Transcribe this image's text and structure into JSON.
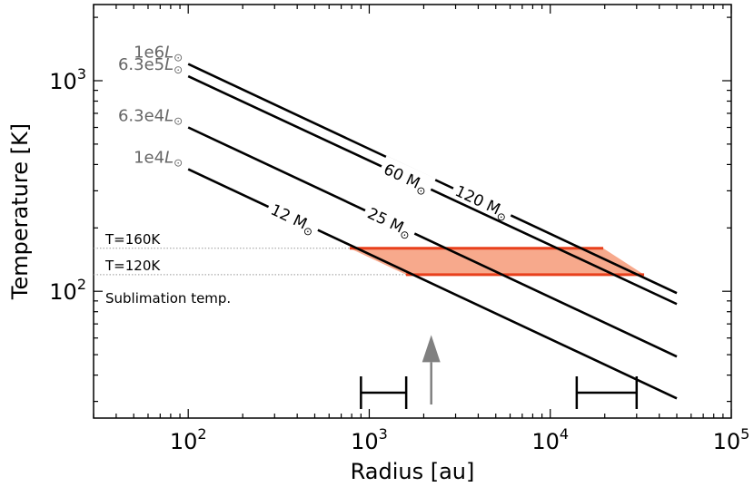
{
  "chart_data": {
    "type": "line",
    "xlabel": "Radius [au]",
    "ylabel": "Temperature [K]",
    "xscale": "log",
    "yscale": "log",
    "xlim": [
      30,
      100000
    ],
    "ylim": [
      25,
      2300
    ],
    "grid": false,
    "x_ticks": [
      {
        "value": 100,
        "base": "10",
        "exp": "2"
      },
      {
        "value": 1000,
        "base": "10",
        "exp": "3"
      },
      {
        "value": 10000,
        "base": "10",
        "exp": "4"
      },
      {
        "value": 100000,
        "base": "10",
        "exp": "5"
      }
    ],
    "y_ticks": [
      {
        "value": 100,
        "base": "10",
        "exp": "2"
      },
      {
        "value": 1000,
        "base": "10",
        "exp": "3"
      }
    ],
    "series": [
      {
        "x": [
          100,
          50000
        ],
        "y": [
          1200,
          98
        ],
        "luminosity": "1e6",
        "mass_label": "120 M",
        "mass_at": 4200
      },
      {
        "x": [
          100,
          50000
        ],
        "y": [
          1050,
          87
        ],
        "luminosity": "6.3e5",
        "mass_label": "60 M",
        "mass_at": 1600
      },
      {
        "x": [
          100,
          50000
        ],
        "y": [
          600,
          49
        ],
        "luminosity": "6.3e4",
        "mass_label": "25 M",
        "mass_at": 1300
      },
      {
        "x": [
          100,
          50000
        ],
        "y": [
          380,
          31
        ],
        "luminosity": "1e4",
        "mass_label": "12 M",
        "mass_at": 380
      }
    ],
    "lsun_symbol": "L",
    "msun_symbol": "⊙",
    "sublimation": {
      "label": "Sublimation temp.",
      "upper": {
        "temp": 160,
        "label": "T=160K"
      },
      "lower": {
        "temp": 120,
        "label": "T=120K"
      },
      "band_x_min": 780,
      "band_x_max": 33000,
      "line_color": "#e8401c",
      "fill_color": "#f7a98c"
    },
    "error_bars": [
      {
        "x_min": 900,
        "x_max": 1600,
        "y": 33
      },
      {
        "x_min": 14000,
        "x_max": 30000,
        "y": 33
      }
    ],
    "arrow": {
      "x": 2200,
      "y_from": 29,
      "y_to": 62,
      "color": "#808080"
    }
  }
}
